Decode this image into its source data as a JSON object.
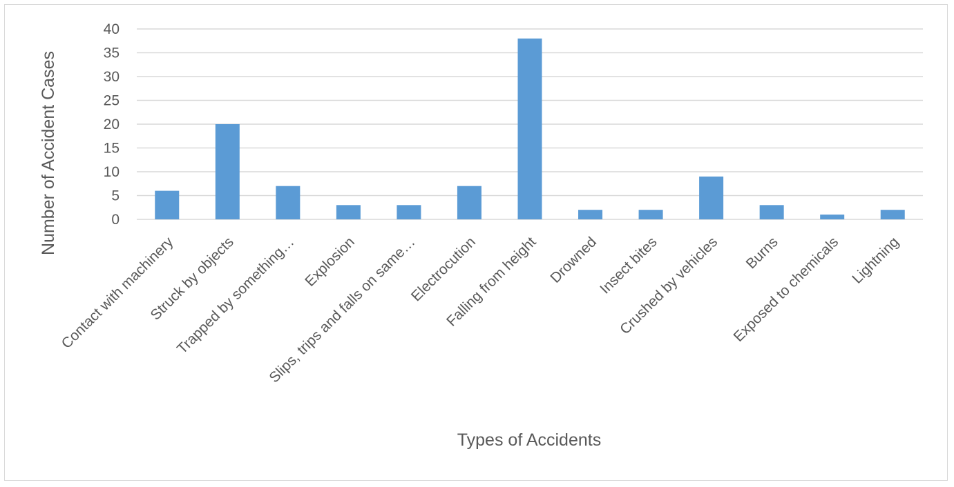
{
  "chart_data": {
    "type": "bar",
    "title": "",
    "xlabel": "Types of Accidents",
    "ylabel": "Number of Accident Cases",
    "ylim": [
      0,
      40
    ],
    "yticks": [
      0,
      5,
      10,
      15,
      20,
      25,
      30,
      35,
      40
    ],
    "grid": true,
    "legend": "none",
    "bar_color": "#5b9bd5",
    "grid_color": "#d9d9d9",
    "text_color": "#595959",
    "categories": [
      "Contact with machinery",
      "Struck by objects",
      "Trapped by something…",
      "Explosion",
      "Slips, trips and falls on same…",
      "Electrocution",
      "Falling from height",
      "Drowned",
      "Insect bites",
      "Crushed by vehicles",
      "Burns",
      "Exposed to chemicals",
      "Lightning"
    ],
    "values": [
      6,
      20,
      7,
      3,
      3,
      7,
      38,
      2,
      2,
      9,
      3,
      1,
      2
    ]
  }
}
